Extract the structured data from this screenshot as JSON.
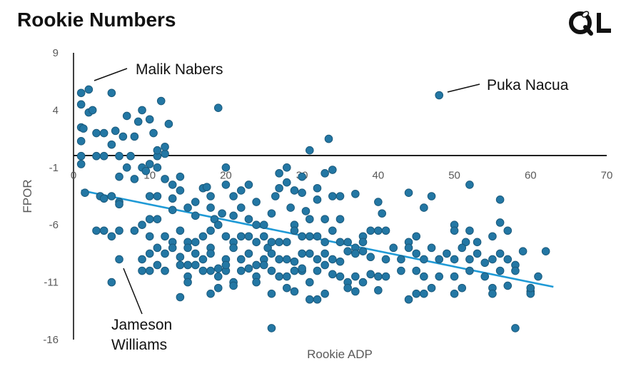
{
  "chart_data": {
    "type": "scatter",
    "title": "Rookie Numbers",
    "xlabel": "Rookie ADP",
    "ylabel": "FPOR",
    "xlim": [
      0,
      70
    ],
    "ylim": [
      -16,
      9
    ],
    "x_ticks": [
      0,
      10,
      20,
      30,
      40,
      50,
      60,
      70
    ],
    "y_ticks": [
      9,
      4,
      -1,
      -6,
      -11,
      -16
    ],
    "x_tick_labels": [
      "0",
      "10",
      "20",
      "30",
      "40",
      "50",
      "60",
      "70"
    ],
    "y_tick_labels": [
      "9",
      "4",
      "-1",
      "-6",
      "-11",
      "-16"
    ],
    "grid": false,
    "legend": "none",
    "colors": {
      "points": "#2377a4",
      "point_edge": "#1b5a7c",
      "trendline": "#1f9ad6",
      "axes": "#000000"
    },
    "trendline": {
      "type": "linear",
      "x": [
        1,
        63
      ],
      "y": [
        -3.0,
        -11.4
      ]
    },
    "annotations": [
      {
        "label": "Malik Nabers",
        "x": 2,
        "y": 5.8
      },
      {
        "label": "Puka Nacua",
        "x": 48,
        "y": 5.3
      },
      {
        "label": "Jameson Williams",
        "x": 6,
        "y": -9.2
      }
    ],
    "points": [
      [
        1,
        5.5
      ],
      [
        1,
        4.5
      ],
      [
        1,
        2.5
      ],
      [
        1.3,
        2.4
      ],
      [
        1,
        1.3
      ],
      [
        1,
        0
      ],
      [
        1,
        -0.7
      ],
      [
        1.5,
        -3.2
      ],
      [
        2,
        3.8
      ],
      [
        2,
        5.8
      ],
      [
        2.5,
        4
      ],
      [
        3,
        2
      ],
      [
        3,
        0
      ],
      [
        4,
        0
      ],
      [
        3.5,
        -3.5
      ],
      [
        4,
        -3.7
      ],
      [
        5,
        -3.5
      ],
      [
        4,
        2
      ],
      [
        5,
        1
      ],
      [
        5.5,
        2.2
      ],
      [
        6,
        0
      ],
      [
        6.5,
        1.7
      ],
      [
        6,
        -1.8
      ],
      [
        6,
        -4
      ],
      [
        7,
        -1
      ],
      [
        7.5,
        0
      ],
      [
        5,
        5.5
      ],
      [
        7,
        3.5
      ],
      [
        8,
        1.7
      ],
      [
        8,
        -2
      ],
      [
        9,
        -1
      ],
      [
        9.5,
        -1.3
      ],
      [
        8.5,
        3
      ],
      [
        10,
        -0.7
      ],
      [
        10,
        -3.5
      ],
      [
        11,
        -3.5
      ],
      [
        11,
        -1
      ],
      [
        11,
        0
      ],
      [
        11,
        0.5
      ],
      [
        12,
        0.2
      ],
      [
        12,
        0.8
      ],
      [
        12.5,
        2.8
      ],
      [
        10.5,
        2
      ],
      [
        11.5,
        4.8
      ],
      [
        9,
        4
      ],
      [
        10,
        3.2
      ],
      [
        12,
        -2
      ],
      [
        13,
        -3.7
      ],
      [
        13,
        -4.7
      ],
      [
        13,
        -2.5
      ],
      [
        14,
        -1.8
      ],
      [
        14,
        -3
      ],
      [
        15,
        -4.5
      ],
      [
        16,
        -5.2
      ],
      [
        16,
        -4
      ],
      [
        17,
        -2.8
      ],
      [
        17.5,
        -2.7
      ],
      [
        18,
        -3.5
      ],
      [
        18,
        -4.5
      ],
      [
        18.5,
        -5.5
      ],
      [
        19,
        4.2
      ],
      [
        19.5,
        -5
      ],
      [
        20,
        -1
      ],
      [
        20,
        -2.5
      ],
      [
        21,
        -3.5
      ],
      [
        21,
        -5.2
      ],
      [
        22,
        -4.5
      ],
      [
        22,
        -3
      ],
      [
        23,
        -2.5
      ],
      [
        23,
        -5.5
      ],
      [
        24,
        -4
      ],
      [
        24,
        -6
      ],
      [
        25,
        -6
      ],
      [
        26,
        -5
      ],
      [
        26.5,
        -3.5
      ],
      [
        27,
        -1.5
      ],
      [
        27,
        -2.8
      ],
      [
        28,
        -2.3
      ],
      [
        28,
        -1
      ],
      [
        28.5,
        -4.5
      ],
      [
        29,
        -3
      ],
      [
        29,
        -6
      ],
      [
        30,
        -3.2
      ],
      [
        30,
        -1.8
      ],
      [
        30.5,
        -4.8
      ],
      [
        31,
        0.5
      ],
      [
        31,
        -5.5
      ],
      [
        32,
        -3.8
      ],
      [
        32,
        -2.8
      ],
      [
        33,
        -5.5
      ],
      [
        33,
        -1.5
      ],
      [
        33.5,
        1.5
      ],
      [
        34,
        -1.2
      ],
      [
        34,
        -3.5
      ],
      [
        35,
        -3.5
      ],
      [
        35,
        -5.5
      ],
      [
        37,
        -3.3
      ],
      [
        38,
        -7
      ],
      [
        39,
        -6.5
      ],
      [
        40,
        -4
      ],
      [
        40,
        -6.5
      ],
      [
        40.5,
        -5
      ],
      [
        41,
        -6.5
      ],
      [
        44,
        -7.5
      ],
      [
        44,
        -3.2
      ],
      [
        45,
        -7
      ],
      [
        46,
        -4.5
      ],
      [
        47,
        -3.5
      ],
      [
        48,
        5.3
      ],
      [
        52,
        -2.5
      ],
      [
        50,
        -6
      ],
      [
        50,
        -6.5
      ],
      [
        51.5,
        -7.5
      ],
      [
        52,
        -6.5
      ],
      [
        53,
        -7.5
      ],
      [
        55,
        -7
      ],
      [
        56,
        -3.8
      ],
      [
        56,
        -5.8
      ],
      [
        57,
        -6.5
      ],
      [
        3,
        -6.5
      ],
      [
        4,
        -6.5
      ],
      [
        5,
        -7
      ],
      [
        6,
        -4.2
      ],
      [
        6,
        -6.5
      ],
      [
        8,
        -6.5
      ],
      [
        9,
        -6
      ],
      [
        10,
        -5.5
      ],
      [
        10,
        -7
      ],
      [
        11,
        -5.5
      ],
      [
        12,
        -7
      ],
      [
        13,
        -7.5
      ],
      [
        14,
        -6.5
      ],
      [
        15,
        -7.5
      ],
      [
        15,
        -8
      ],
      [
        16,
        -7.5
      ],
      [
        17,
        -7
      ],
      [
        18,
        -6.5
      ],
      [
        18,
        -8
      ],
      [
        19,
        -6
      ],
      [
        20,
        -7
      ],
      [
        21,
        -7.5
      ],
      [
        22,
        -7
      ],
      [
        23,
        -7
      ],
      [
        24,
        -7.5
      ],
      [
        25,
        -7
      ],
      [
        25.5,
        -8
      ],
      [
        26,
        -7.5
      ],
      [
        27,
        -7.5
      ],
      [
        28,
        -7.5
      ],
      [
        29,
        -6.5
      ],
      [
        30,
        -7
      ],
      [
        31,
        -7
      ],
      [
        32,
        -7
      ],
      [
        33,
        -7.5
      ],
      [
        34,
        -6.5
      ],
      [
        35,
        -7.5
      ],
      [
        36,
        -7.5
      ],
      [
        37,
        -8
      ],
      [
        38,
        -7.5
      ],
      [
        9,
        -9
      ],
      [
        10,
        -8.5
      ],
      [
        11,
        -8
      ],
      [
        12,
        -8.5
      ],
      [
        13,
        -8
      ],
      [
        14,
        -8.8
      ],
      [
        15,
        -9.5
      ],
      [
        16,
        -8.5
      ],
      [
        17,
        -9
      ],
      [
        18,
        -8.5
      ],
      [
        19,
        -9.8
      ],
      [
        20,
        -9
      ],
      [
        21,
        -8
      ],
      [
        22,
        -9
      ],
      [
        23,
        -8.5
      ],
      [
        24,
        -9.5
      ],
      [
        25,
        -9
      ],
      [
        26,
        -8.5
      ],
      [
        27,
        -9
      ],
      [
        28,
        -9
      ],
      [
        29,
        -9.2
      ],
      [
        30,
        -8.5
      ],
      [
        31,
        -8.5
      ],
      [
        32,
        -9
      ],
      [
        33,
        -8.5
      ],
      [
        34,
        -9
      ],
      [
        35,
        -9.2
      ],
      [
        36,
        -8.3
      ],
      [
        37,
        -8.5
      ],
      [
        38,
        -8.3
      ],
      [
        39,
        -8.8
      ],
      [
        6,
        -9
      ],
      [
        9,
        -10
      ],
      [
        10,
        -10
      ],
      [
        11,
        -9.5
      ],
      [
        12,
        -10
      ],
      [
        14,
        -9.5
      ],
      [
        15,
        -10.5
      ],
      [
        16,
        -9.5
      ],
      [
        17,
        -10
      ],
      [
        18,
        -10
      ],
      [
        19,
        -10.5
      ],
      [
        20,
        -10
      ],
      [
        21,
        -11
      ],
      [
        22,
        -10
      ],
      [
        23,
        -9.8
      ],
      [
        24,
        -10.5
      ],
      [
        25,
        -9.5
      ],
      [
        26,
        -10
      ],
      [
        27,
        -10.5
      ],
      [
        28,
        -10.5
      ],
      [
        29,
        -10
      ],
      [
        30,
        -10
      ],
      [
        31,
        -11
      ],
      [
        32,
        -10
      ],
      [
        33,
        -9.5
      ],
      [
        34,
        -10.3
      ],
      [
        35,
        -10.5
      ],
      [
        36,
        -11
      ],
      [
        37,
        -10.5
      ],
      [
        38,
        -11
      ],
      [
        39,
        -10.3
      ],
      [
        40,
        -10.5
      ],
      [
        5,
        -11
      ],
      [
        15,
        -11
      ],
      [
        19,
        -11.5
      ],
      [
        21,
        -11.3
      ],
      [
        24,
        -11
      ],
      [
        26,
        -12
      ],
      [
        29,
        -11.8
      ],
      [
        31,
        -12.5
      ],
      [
        33,
        -12
      ],
      [
        36,
        -11.5
      ],
      [
        37,
        -11.8
      ],
      [
        40,
        -11.7
      ],
      [
        45,
        -12
      ],
      [
        47,
        -11.5
      ],
      [
        51,
        -11.5
      ],
      [
        55,
        -11.5
      ],
      [
        57,
        -11.3
      ],
      [
        60,
        -11.8
      ],
      [
        60,
        -12
      ],
      [
        14,
        -12.3
      ],
      [
        28,
        -11.5
      ],
      [
        41,
        -9
      ],
      [
        42,
        -8
      ],
      [
        43,
        -9
      ],
      [
        44,
        -8
      ],
      [
        45,
        -8.5
      ],
      [
        46,
        -9
      ],
      [
        47,
        -8
      ],
      [
        48,
        -9
      ],
      [
        49,
        -8.5
      ],
      [
        50,
        -9
      ],
      [
        51,
        -8
      ],
      [
        52,
        -9
      ],
      [
        53,
        -8.5
      ],
      [
        54,
        -9.3
      ],
      [
        55,
        -9
      ],
      [
        56,
        -8.5
      ],
      [
        57,
        -9
      ],
      [
        58,
        -9.5
      ],
      [
        59,
        -8.3
      ],
      [
        62,
        -8.3
      ],
      [
        41,
        -10.5
      ],
      [
        43,
        -10
      ],
      [
        45,
        -10
      ],
      [
        46,
        -10.5
      ],
      [
        48,
        -10.5
      ],
      [
        50,
        -10.5
      ],
      [
        52,
        -10
      ],
      [
        54,
        -10.5
      ],
      [
        56,
        -10
      ],
      [
        58,
        -10
      ],
      [
        61,
        -10.5
      ],
      [
        44,
        -12.5
      ],
      [
        32,
        -12.5
      ],
      [
        26,
        -15
      ],
      [
        58,
        -15
      ],
      [
        46,
        -12
      ],
      [
        50,
        -12
      ],
      [
        55,
        -12
      ],
      [
        60,
        -11.5
      ],
      [
        30,
        -9.8
      ],
      [
        20,
        -9.5
      ],
      [
        18,
        -12
      ]
    ]
  }
}
